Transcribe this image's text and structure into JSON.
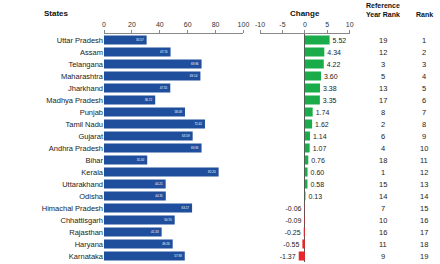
{
  "chart_data": [
    {
      "type": "bar",
      "orientation": "horizontal",
      "ylabel": "States",
      "categories": [
        "Uttar Pradesh",
        "Assam",
        "Telangana",
        "Maharashtra",
        "Jharkhand",
        "Madhya Pradesh",
        "Punjab",
        "Tamil Nadu",
        "Gujarat",
        "Andhra Pradesh",
        "Bihar",
        "Kerala",
        "Uttarakhand",
        "Odisha",
        "Himachal Pradesh",
        "Chhattisgarh",
        "Rajasthan",
        "Haryana",
        "Karnataka"
      ],
      "values": [
        30.57,
        47.74,
        69.96,
        69.14,
        47.55,
        36.72,
        58.08,
        72.42,
        63.59,
        69.95,
        31.0,
        82.2,
        44.21,
        44.31,
        63.17,
        50.7,
        41.33,
        49.26,
        57.93
      ],
      "value_labels": [
        "30.57",
        "47.74",
        "69.96",
        "69.14",
        "47.55",
        "36.72",
        "58.08",
        "72.42",
        "63.59",
        "69.95",
        "31.00",
        "82.20",
        "44.21",
        "44.31",
        "63.17",
        "50.70",
        "41.33",
        "49.26",
        "57.93"
      ],
      "color": "#1f4e9d",
      "xlim": [
        0,
        100
      ],
      "xticks": [
        0,
        20,
        40,
        60,
        80,
        100
      ],
      "data_labels": true,
      "grid": false
    },
    {
      "type": "bar",
      "orientation": "horizontal",
      "title": "Change",
      "categories": [
        "Uttar Pradesh",
        "Assam",
        "Telangana",
        "Maharashtra",
        "Jharkhand",
        "Madhya Pradesh",
        "Punjab",
        "Tamil Nadu",
        "Gujarat",
        "Andhra Pradesh",
        "Bihar",
        "Kerala",
        "Uttarakhand",
        "Odisha",
        "Himachal Pradesh",
        "Chhattisgarh",
        "Rajasthan",
        "Haryana",
        "Karnataka"
      ],
      "values": [
        5.52,
        4.34,
        4.22,
        3.6,
        3.38,
        3.35,
        1.74,
        1.62,
        1.14,
        1.07,
        0.76,
        0.6,
        0.58,
        0.13,
        -0.06,
        -0.09,
        -0.25,
        -0.55,
        -1.37
      ],
      "value_labels": [
        "5.52",
        "4.34",
        "4.22",
        "3.60",
        "3.38",
        "3.35",
        "1.74",
        "1.62",
        "1.14",
        "1.07",
        "0.76",
        "0.60",
        "0.58",
        "0.13",
        "-0.06",
        "-0.09",
        "-0.25",
        "-0.55",
        "-1.37"
      ],
      "colors": [
        "#1aab4b",
        "#1aab4b",
        "#1aab4b",
        "#1aab4b",
        "#1aab4b",
        "#1aab4b",
        "#1aab4b",
        "#1aab4b",
        "#1aab4b",
        "#1aab4b",
        "#1aab4b",
        "#1aab4b",
        "#1aab4b",
        "#1aab4b",
        "#e8262a",
        "#e8262a",
        "#e8262a",
        "#e8262a",
        "#e8262a"
      ],
      "xlim": [
        -10,
        10
      ],
      "xticks": [
        -10,
        -5,
        0,
        5,
        10
      ],
      "data_labels": true,
      "grid": false
    }
  ],
  "table": {
    "columns": [
      {
        "header": "Reference Year Rank",
        "values": [
          19,
          12,
          3,
          5,
          13,
          17,
          8,
          2,
          6,
          4,
          18,
          1,
          15,
          14,
          7,
          10,
          16,
          11,
          9
        ]
      },
      {
        "header": "Rank",
        "values": [
          1,
          2,
          3,
          4,
          5,
          6,
          7,
          8,
          9,
          10,
          11,
          12,
          13,
          14,
          15,
          16,
          17,
          18,
          19
        ]
      }
    ]
  }
}
